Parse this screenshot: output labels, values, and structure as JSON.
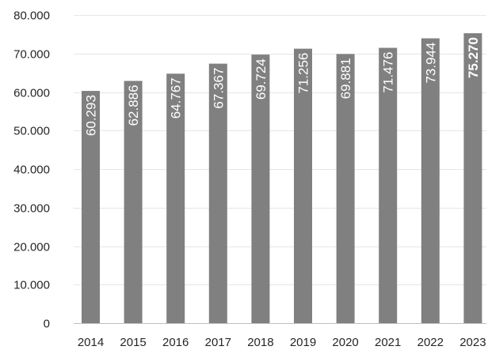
{
  "chart_data": {
    "type": "bar",
    "categories": [
      "2014",
      "2015",
      "2016",
      "2017",
      "2018",
      "2019",
      "2020",
      "2021",
      "2022",
      "2023"
    ],
    "values": [
      60293,
      62886,
      64767,
      67367,
      69724,
      71256,
      69881,
      71476,
      73944,
      75270
    ],
    "data_labels": [
      "60.293",
      "62.886",
      "64.767",
      "67.367",
      "69.724",
      "71.256",
      "69.881",
      "71.476",
      "73.944",
      "75.270"
    ],
    "emphasized_index": 9,
    "ylim": [
      0,
      80000
    ],
    "y_ticks": [
      {
        "value": 0,
        "label": "0"
      },
      {
        "value": 10000,
        "label": "10.000"
      },
      {
        "value": 20000,
        "label": "20.000"
      },
      {
        "value": 30000,
        "label": "30.000"
      },
      {
        "value": 40000,
        "label": "40.000"
      },
      {
        "value": 50000,
        "label": "50.000"
      },
      {
        "value": 60000,
        "label": "60.000"
      },
      {
        "value": 70000,
        "label": "70.000"
      },
      {
        "value": 80000,
        "label": "80.000"
      }
    ],
    "grid": true,
    "legend": "none",
    "title": "",
    "xlabel": "",
    "ylabel": "",
    "colors": {
      "bar": "#808080",
      "label": "#ffffff",
      "gridline": "#e6e6e6",
      "axis_text": "#262626"
    }
  }
}
